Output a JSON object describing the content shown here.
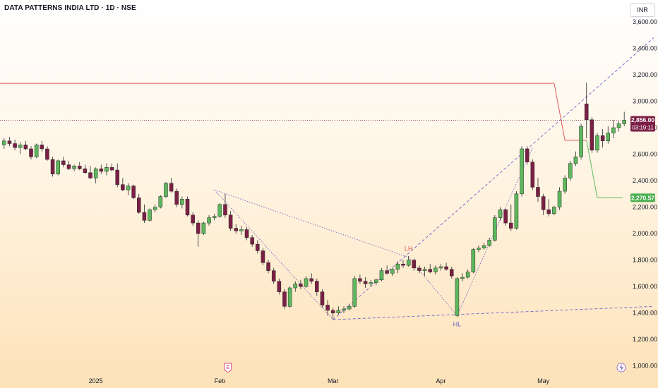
{
  "header": {
    "title": "DATA PATTERNS INDIA LTD · 1D · NSE",
    "currency": "INR"
  },
  "colors": {
    "up_fill": "#5cb85c",
    "down_fill": "#7b1f45",
    "candle_border": "#2a2a2a",
    "resistance": "#e05a5a",
    "support": "#5cb85c",
    "trendline": "#6f63c8",
    "price_badge": "#7b1f45",
    "target_badge": "#4caf50"
  },
  "chart_data": {
    "type": "candlestick",
    "ylim": [
      940,
      3690
    ],
    "ytick_values": [
      1000,
      1200,
      1400,
      1600,
      1800,
      2000,
      2200,
      2400,
      2600,
      2800,
      3000,
      3200,
      3400,
      3600
    ],
    "ytick_labels": [
      "1,000.00",
      "1,200.00",
      "1,400.00",
      "1,600.00",
      "1,800.00",
      "2,000.00",
      "2,200.00",
      "2,400.00",
      "2,600.00",
      "2,800.00",
      "3,000.00",
      "3,200.00",
      "3,400.00",
      "3,600.00"
    ],
    "xtick_labels": [
      {
        "label": "2025",
        "index": 17
      },
      {
        "label": "Feb",
        "index": 40
      },
      {
        "label": "Mar",
        "index": 61
      },
      {
        "label": "Apr",
        "index": 81
      },
      {
        "label": "May",
        "index": 100
      }
    ],
    "candles": [
      [
        2670,
        2720,
        2640,
        2700
      ],
      [
        2700,
        2730,
        2660,
        2680
      ],
      [
        2680,
        2710,
        2630,
        2650
      ],
      [
        2650,
        2690,
        2600,
        2670
      ],
      [
        2670,
        2700,
        2630,
        2640
      ],
      [
        2640,
        2660,
        2560,
        2580
      ],
      [
        2580,
        2680,
        2570,
        2670
      ],
      [
        2670,
        2700,
        2620,
        2640
      ],
      [
        2640,
        2660,
        2550,
        2560
      ],
      [
        2560,
        2580,
        2430,
        2450
      ],
      [
        2450,
        2560,
        2440,
        2550
      ],
      [
        2550,
        2580,
        2500,
        2520
      ],
      [
        2520,
        2550,
        2480,
        2490
      ],
      [
        2490,
        2520,
        2470,
        2510
      ],
      [
        2510,
        2540,
        2480,
        2490
      ],
      [
        2490,
        2520,
        2450,
        2460
      ],
      [
        2460,
        2510,
        2410,
        2420
      ],
      [
        2420,
        2500,
        2380,
        2490
      ],
      [
        2490,
        2520,
        2450,
        2470
      ],
      [
        2470,
        2530,
        2440,
        2500
      ],
      [
        2500,
        2530,
        2470,
        2480
      ],
      [
        2480,
        2530,
        2350,
        2370
      ],
      [
        2370,
        2420,
        2320,
        2330
      ],
      [
        2330,
        2380,
        2290,
        2360
      ],
      [
        2360,
        2370,
        2260,
        2270
      ],
      [
        2270,
        2300,
        2150,
        2160
      ],
      [
        2160,
        2220,
        2080,
        2100
      ],
      [
        2100,
        2190,
        2090,
        2180
      ],
      [
        2180,
        2220,
        2160,
        2200
      ],
      [
        2200,
        2290,
        2190,
        2280
      ],
      [
        2280,
        2390,
        2270,
        2380
      ],
      [
        2380,
        2420,
        2310,
        2320
      ],
      [
        2320,
        2340,
        2200,
        2220
      ],
      [
        2220,
        2280,
        2190,
        2260
      ],
      [
        2260,
        2280,
        2130,
        2140
      ],
      [
        2140,
        2160,
        2060,
        2080
      ],
      [
        2080,
        2100,
        1900,
        2000
      ],
      [
        2000,
        2090,
        1990,
        2080
      ],
      [
        2080,
        2140,
        2060,
        2120
      ],
      [
        2120,
        2150,
        2100,
        2130
      ],
      [
        2130,
        2230,
        2120,
        2220
      ],
      [
        2220,
        2300,
        2120,
        2140
      ],
      [
        2140,
        2170,
        2020,
        2040
      ],
      [
        2040,
        2070,
        2000,
        2020
      ],
      [
        2020,
        2060,
        1990,
        2030
      ],
      [
        2030,
        2050,
        1950,
        1970
      ],
      [
        1970,
        1990,
        1900,
        1920
      ],
      [
        1920,
        1950,
        1850,
        1870
      ],
      [
        1870,
        1890,
        1760,
        1780
      ],
      [
        1780,
        1800,
        1700,
        1720
      ],
      [
        1720,
        1740,
        1620,
        1640
      ],
      [
        1640,
        1660,
        1540,
        1560
      ],
      [
        1560,
        1580,
        1430,
        1450
      ],
      [
        1450,
        1600,
        1440,
        1590
      ],
      [
        1590,
        1640,
        1560,
        1620
      ],
      [
        1620,
        1650,
        1580,
        1600
      ],
      [
        1600,
        1680,
        1590,
        1660
      ],
      [
        1660,
        1700,
        1620,
        1640
      ],
      [
        1640,
        1660,
        1530,
        1560
      ],
      [
        1560,
        1580,
        1440,
        1460
      ],
      [
        1460,
        1500,
        1380,
        1420
      ],
      [
        1420,
        1440,
        1350,
        1400
      ],
      [
        1400,
        1450,
        1390,
        1420
      ],
      [
        1420,
        1450,
        1400,
        1430
      ],
      [
        1430,
        1470,
        1420,
        1450
      ],
      [
        1450,
        1680,
        1440,
        1660
      ],
      [
        1660,
        1690,
        1620,
        1640
      ],
      [
        1640,
        1670,
        1590,
        1620
      ],
      [
        1620,
        1650,
        1600,
        1630
      ],
      [
        1630,
        1660,
        1610,
        1650
      ],
      [
        1650,
        1740,
        1640,
        1720
      ],
      [
        1720,
        1760,
        1690,
        1700
      ],
      [
        1700,
        1740,
        1680,
        1730
      ],
      [
        1730,
        1790,
        1700,
        1770
      ],
      [
        1770,
        1800,
        1740,
        1760
      ],
      [
        1760,
        1830,
        1750,
        1800
      ],
      [
        1800,
        1810,
        1720,
        1740
      ],
      [
        1740,
        1760,
        1700,
        1720
      ],
      [
        1720,
        1750,
        1680,
        1730
      ],
      [
        1730,
        1770,
        1700,
        1710
      ],
      [
        1710,
        1760,
        1690,
        1740
      ],
      [
        1740,
        1770,
        1720,
        1750
      ],
      [
        1750,
        1780,
        1720,
        1730
      ],
      [
        1730,
        1750,
        1660,
        1680
      ],
      [
        1380,
        1670,
        1370,
        1660
      ],
      [
        1660,
        1700,
        1640,
        1670
      ],
      [
        1670,
        1730,
        1660,
        1710
      ],
      [
        1710,
        1890,
        1700,
        1880
      ],
      [
        1880,
        1910,
        1860,
        1890
      ],
      [
        1890,
        1930,
        1880,
        1910
      ],
      [
        1910,
        1970,
        1900,
        1950
      ],
      [
        1950,
        2140,
        1940,
        2120
      ],
      [
        2120,
        2200,
        2100,
        2180
      ],
      [
        2180,
        2190,
        2060,
        2080
      ],
      [
        2080,
        2220,
        2020,
        2040
      ],
      [
        2040,
        2320,
        2030,
        2300
      ],
      [
        2300,
        2660,
        2280,
        2640
      ],
      [
        2640,
        2660,
        2520,
        2540
      ],
      [
        2540,
        2560,
        2330,
        2350
      ],
      [
        2350,
        2420,
        2240,
        2280
      ],
      [
        2280,
        2300,
        2140,
        2180
      ],
      [
        2180,
        2260,
        2130,
        2150
      ],
      [
        2150,
        2210,
        2140,
        2200
      ],
      [
        2200,
        2350,
        2180,
        2320
      ],
      [
        2320,
        2440,
        2300,
        2420
      ],
      [
        2420,
        2550,
        2400,
        2530
      ],
      [
        2530,
        2620,
        2510,
        2580
      ],
      [
        2580,
        2830,
        2560,
        2810
      ],
      [
        2980,
        3140,
        2720,
        2860
      ],
      [
        2860,
        2880,
        2610,
        2630
      ],
      [
        2630,
        2760,
        2610,
        2740
      ],
      [
        2740,
        2790,
        2650,
        2700
      ],
      [
        2700,
        2810,
        2680,
        2760
      ],
      [
        2760,
        2860,
        2720,
        2800
      ],
      [
        2800,
        2850,
        2770,
        2830
      ],
      [
        2830,
        2920,
        2810,
        2856
      ]
    ],
    "last_price_label": "2,856.00",
    "countdown_label": "03:19:11",
    "target_price": 2270.57,
    "target_label": "2,270.57",
    "annotations": [
      {
        "text": "LH",
        "index": 75,
        "value": 1870
      },
      {
        "text": "HL",
        "index": 84,
        "value": 1300
      }
    ]
  }
}
